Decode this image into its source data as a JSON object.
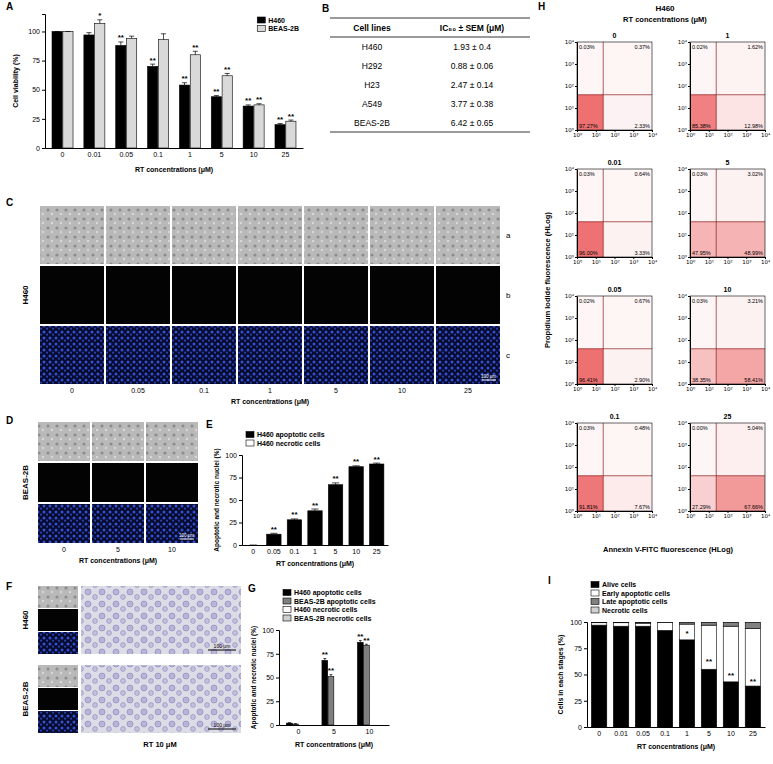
{
  "chart_data": [
    {
      "type": "bar",
      "x_label": "RT concentrations (μM)",
      "y_label": "Cell viability (%)",
      "categories": [
        "0",
        "0.01",
        "0.05",
        "0.1",
        "1",
        "5",
        "10",
        "25"
      ],
      "series": [
        {
          "name": "H460",
          "color": "#000000",
          "values": [
            100,
            97,
            88,
            70,
            54,
            44,
            36,
            20
          ],
          "errors": [
            0,
            2,
            3,
            2,
            2,
            1,
            1,
            1
          ],
          "annotations": [
            null,
            null,
            "**",
            "**",
            "**",
            "**",
            "**",
            "**"
          ]
        },
        {
          "name": "BEAS-2B",
          "color": "#d9d9d9",
          "values": [
            100,
            107,
            94,
            93,
            80,
            62,
            37,
            23
          ],
          "errors": [
            0,
            3,
            2,
            5,
            3,
            2,
            1,
            1
          ],
          "annotations": [
            null,
            "*",
            null,
            null,
            "**",
            "**",
            "**",
            "**"
          ]
        }
      ],
      "ylim": [
        0,
        115
      ],
      "yticks": [
        0,
        25,
        50,
        75,
        100
      ],
      "legend": "top right"
    },
    {
      "type": "bar",
      "stacked": true,
      "x_label": "RT concentrations (μM)",
      "y_label": "Apoptotic and necrotic nuclei (%)",
      "categories": [
        "0",
        "0.05",
        "0.1",
        "1",
        "5",
        "10",
        "25"
      ],
      "series": [
        {
          "name": "H460 apoptotic cells",
          "color": "#000000",
          "values": [
            0,
            12,
            28,
            38,
            67,
            87,
            90
          ],
          "errors": [
            0,
            1,
            1,
            2,
            2,
            1,
            1
          ],
          "annotations": [
            null,
            "**",
            "**",
            "**",
            "**",
            "**",
            "**"
          ]
        },
        {
          "name": "H460 necrotic cells",
          "color": "#ffffff",
          "values": [
            0,
            0,
            0,
            0,
            0,
            0,
            0
          ]
        }
      ],
      "ylim": [
        0,
        100
      ],
      "yticks": [
        0,
        25,
        50,
        75,
        100
      ],
      "legend": "above"
    },
    {
      "type": "bar",
      "x_label": "RT concentrations (μM)",
      "y_label": "Apoptotic and necrotic nuclei (%)",
      "categories": [
        "0",
        "5",
        "10"
      ],
      "series": [
        {
          "name": "H460 apoptotic cells",
          "color": "#000000",
          "values": [
            2,
            68,
            87
          ],
          "errors": [
            0.5,
            2,
            2
          ],
          "annotations": [
            null,
            "**",
            "**"
          ]
        },
        {
          "name": "BEAS-2B apoptotic cells",
          "color": "#7f7f7f",
          "values": [
            1,
            51,
            84
          ],
          "errors": [
            0.5,
            2,
            1
          ],
          "annotations": [
            null,
            "**",
            "**"
          ]
        },
        {
          "name": "H460 necrotic cells",
          "color": "#ffffff",
          "values": [
            0,
            0,
            0
          ]
        },
        {
          "name": "BEAS-2B necrotic cells",
          "color": "#cfcfcf",
          "values": [
            0,
            0,
            0
          ]
        }
      ],
      "ylim": [
        0,
        100
      ],
      "yticks": [
        0,
        25,
        50,
        75,
        100
      ],
      "legend": "above"
    },
    {
      "type": "bar",
      "stacked": true,
      "x_label": "RT concentrations (μM)",
      "y_label": "Cells in each stages (%)",
      "categories": [
        "0",
        "0.01",
        "0.05",
        "0.1",
        "1",
        "5",
        "10",
        "25"
      ],
      "series": [
        {
          "name": "Alive cells",
          "color": "#000000",
          "values": [
            97,
            96,
            96,
            92,
            83,
            55,
            43,
            39
          ],
          "errors": [
            0.5,
            0.5,
            0.5,
            1,
            2,
            4,
            2,
            1
          ],
          "annotations": [
            null,
            null,
            null,
            null,
            "*",
            "**",
            "**",
            "**"
          ]
        },
        {
          "name": "Early apoptotic cells",
          "color": "#ffffff",
          "values": [
            2.3,
            3.3,
            2.9,
            7.4,
            15,
            42,
            53,
            55
          ]
        },
        {
          "name": "Late apoptotic cells",
          "color": "#808080",
          "values": [
            0.6,
            0.6,
            0.8,
            0.5,
            1.8,
            2.8,
            3.8,
            5.8
          ]
        },
        {
          "name": "Necrotic cells",
          "color": "#d0d0d0",
          "values": [
            0.1,
            0.1,
            0.1,
            0.1,
            0.2,
            0.2,
            0.2,
            0.2
          ]
        }
      ],
      "ylim": [
        0,
        100
      ],
      "yticks": [
        0,
        25,
        50,
        75,
        100
      ],
      "legend": "above"
    },
    {
      "type": "quadrant",
      "title": "H460",
      "subtitle": "RT concentrations (μM)",
      "x_label": "Annexin V-FITC fluorescence (HLog)",
      "y_label": "Propidium Iodide fluorescence (HLog)",
      "log": true,
      "color": "#e31a1c",
      "xlim": [
        1,
        10000
      ],
      "ylim": [
        1,
        10000
      ],
      "xticks": [
        {
          "value": 1,
          "label": "10⁰"
        },
        {
          "value": 10,
          "label": "10¹"
        },
        {
          "value": 100,
          "label": "10²"
        },
        {
          "value": 1000,
          "label": "10³"
        },
        {
          "value": 10000,
          "label": "10⁴"
        }
      ],
      "yticks": [
        {
          "value": 1,
          "label": "10⁰"
        },
        {
          "value": 10,
          "label": "10¹"
        },
        {
          "value": 100,
          "label": "10²"
        },
        {
          "value": 1000,
          "label": "10³"
        },
        {
          "value": 10000,
          "label": "10⁴"
        }
      ],
      "x_gate": 25,
      "y_gate": 40,
      "panels": [
        {
          "title": "0",
          "values": [
            0.03,
            0.37,
            97.27,
            2.33
          ],
          "value_labels": [
            "0.03%",
            "0.37%",
            "97.27%",
            "2.33%"
          ]
        },
        {
          "title": "0.01",
          "values": [
            0.03,
            0.64,
            96.0,
            3.33
          ],
          "value_labels": [
            "0.03%",
            "0.64%",
            "96.00%",
            "3.33%"
          ]
        },
        {
          "title": "0.05",
          "values": [
            0.02,
            0.67,
            96.41,
            2.9
          ],
          "value_labels": [
            "0.02%",
            "0.67%",
            "96.41%",
            "2.90%"
          ]
        },
        {
          "title": "0.1",
          "values": [
            0.03,
            0.48,
            91.81,
            7.67
          ],
          "value_labels": [
            "0.03%",
            "0.48%",
            "91.81%",
            "7.67%"
          ]
        },
        {
          "title": "1",
          "values": [
            0.02,
            1.62,
            85.38,
            12.98
          ],
          "value_labels": [
            "0.02%",
            "1.62%",
            "85.38%",
            "12.98%"
          ]
        },
        {
          "title": "5",
          "values": [
            0.03,
            3.02,
            47.95,
            48.99
          ],
          "value_labels": [
            "0.03%",
            "3.02%",
            "47.95%",
            "48.99%"
          ]
        },
        {
          "title": "10",
          "values": [
            0.03,
            3.21,
            38.35,
            58.41
          ],
          "value_labels": [
            "0.03%",
            "3.21%",
            "38.35%",
            "58.41%"
          ]
        },
        {
          "title": "25",
          "values": [
            0,
            5.04,
            27.29,
            67.66
          ],
          "value_labels": [
            "0.00%",
            "5.04%",
            "27.29%",
            "67.66%"
          ]
        }
      ]
    }
  ],
  "table": {
    "columns": [
      "Cell lines",
      "IC₅₀ ± SEM (μM)"
    ],
    "rows": [
      [
        "H460",
        "1.93 ± 0.4"
      ],
      [
        "H292",
        "0.88 ± 0.06"
      ],
      [
        "H23",
        "2.47 ± 0.14"
      ],
      [
        "A549",
        "3.77 ± 0.38"
      ],
      [
        "BEAS-2B",
        "6.42 ± 0.65"
      ]
    ]
  },
  "micrographs": [
    {
      "cell_lines": [
        "H460"
      ],
      "columns": [
        "0",
        "0.05",
        "0.1",
        "1",
        "5",
        "10",
        "25"
      ],
      "row_labels": [
        "a",
        "b",
        "c"
      ],
      "x_label": "RT concentrations (μM)",
      "scale_bar": "100 μm"
    },
    {
      "cell_lines": [
        "BEAS-2B"
      ],
      "columns": [
        "0",
        "5",
        "10"
      ],
      "x_label": "RT concentrations (μM)",
      "scale_bar": "100 μm"
    },
    {
      "cell_lines": [
        "H460",
        "BEAS-2B"
      ],
      "caption": "RT 10 μM",
      "scale_bar": "100 μm"
    }
  ],
  "panel_labels": [
    "A",
    "B",
    "C",
    "D",
    "E",
    "F",
    "G",
    "H",
    "I"
  ]
}
